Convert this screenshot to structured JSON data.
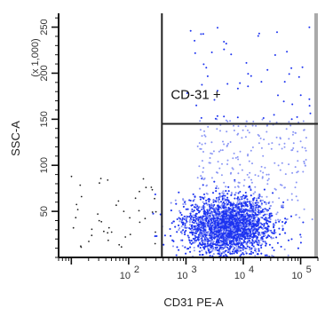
{
  "chart_data": {
    "type": "scatter",
    "title": "",
    "xlabel": "CD31 PE-A",
    "ylabel": "SSC-A",
    "y_multiplier_label": "(x 1,000)",
    "x_scale": "log",
    "x_range": [
      6,
      200000
    ],
    "y_range": [
      0,
      265
    ],
    "x_tick_labels": [
      {
        "value": 100,
        "base": "10",
        "exp": "2"
      },
      {
        "value": 1000,
        "base": "10",
        "exp": "3"
      },
      {
        "value": 10000,
        "base": "10",
        "exp": "4"
      },
      {
        "value": 100000,
        "base": "10",
        "exp": "5"
      }
    ],
    "y_ticks": [
      50,
      100,
      150,
      200,
      250
    ],
    "gate": {
      "label": "CD-31 +",
      "x_threshold": 380,
      "y_threshold": 145
    },
    "colors": {
      "dense": "#1c33f0",
      "sparse": "#8a96f5",
      "negative": "#202020",
      "gate_line": "#222222",
      "axis": "#111111",
      "right_edge": "#aaaaaa"
    }
  }
}
